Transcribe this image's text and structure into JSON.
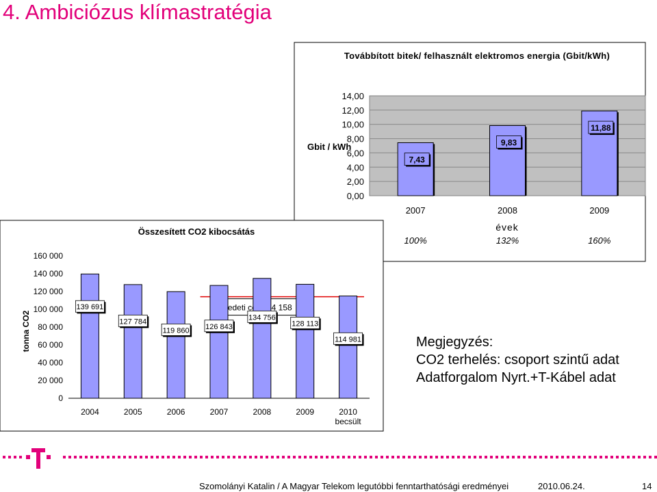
{
  "slide": {
    "title": "4. Ambiciózus klímastratégia"
  },
  "chart_data": [
    {
      "type": "bar",
      "title": "Továbbított bitek/ felhasznált elektromos energia (Gbit/kWh)",
      "ylabel": "Gbit / kWh",
      "xlabel": "évek",
      "categories": [
        "2007",
        "2008",
        "2009"
      ],
      "values": [
        7.43,
        9.83,
        11.88
      ],
      "data_labels": [
        "7,43",
        "9,83",
        "11,88"
      ],
      "percent_labels": [
        "100%",
        "132%",
        "160%"
      ],
      "ylim": [
        0,
        14
      ],
      "yticks": [
        "0,00",
        "2,00",
        "4,00",
        "6,00",
        "8,00",
        "10,00",
        "12,00",
        "14,00"
      ],
      "grid": true,
      "bar_color": "#9999ff",
      "plot_bg": "#c0c0c0"
    },
    {
      "type": "bar",
      "title": "Összesített CO2 kibocsátás",
      "ylabel": "tonna CO2",
      "categories": [
        "2004",
        "2005",
        "2006",
        "2007",
        "2008",
        "2009",
        "2010"
      ],
      "category_sublabels": [
        "",
        "",
        "",
        "",
        "",
        "",
        "becsült"
      ],
      "values": [
        139691,
        127784,
        119860,
        126843,
        134756,
        128113,
        114981
      ],
      "data_labels": [
        "139 691",
        "127 784",
        "119 860",
        "126 843",
        "134 756",
        "128 113",
        "114 981"
      ],
      "ylim": [
        0,
        160000
      ],
      "yticks": [
        "0",
        "20 000",
        "40 000",
        "60 000",
        "80 000",
        "100 000",
        "120 000",
        "140 000",
        "160 000"
      ],
      "target_label": "eredeti cél: 114 158",
      "target_value": 114158,
      "bar_color": "#9999ff",
      "target_color": "#e00000"
    }
  ],
  "note": {
    "line1": "Megjegyzés:",
    "line2": "CO2 terhelés: csoport szintű adat",
    "line3": "Adatforgalom Nyrt.+T-Kábel adat"
  },
  "footer": {
    "text": "Szomolányi Katalin / A Magyar Telekom legutóbbi fenntarthatósági eredményei",
    "date": "2010.06.24.",
    "page": "14"
  },
  "brand": {
    "magenta": "#e2007a"
  }
}
